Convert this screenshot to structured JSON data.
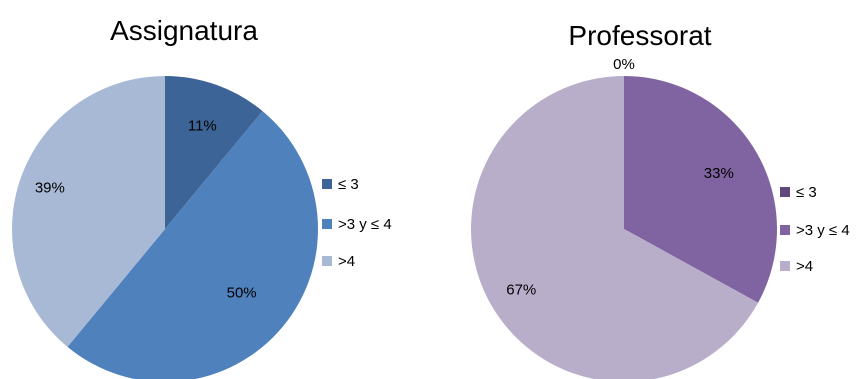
{
  "chart_data": [
    {
      "type": "pie",
      "title": "Assignatura",
      "categories": [
        "≤ 3",
        ">3 y ≤ 4",
        ">4"
      ],
      "values": [
        11,
        50,
        39
      ],
      "data_labels": [
        "11%",
        "50%",
        "39%"
      ],
      "colors": [
        "#3d6496",
        "#4f81bd",
        "#a8b9d6"
      ],
      "legend_position": "right",
      "start_angle": "top, clockwise"
    },
    {
      "type": "pie",
      "title": "Professorat",
      "categories": [
        "≤ 3",
        ">3 y ≤ 4",
        ">4"
      ],
      "values": [
        0,
        33,
        67
      ],
      "data_labels": [
        "0%",
        "33%",
        "67%"
      ],
      "colors": [
        "#5f497a",
        "#8064a2",
        "#b9aeca"
      ],
      "legend_position": "right",
      "start_angle": "top, clockwise"
    }
  ]
}
